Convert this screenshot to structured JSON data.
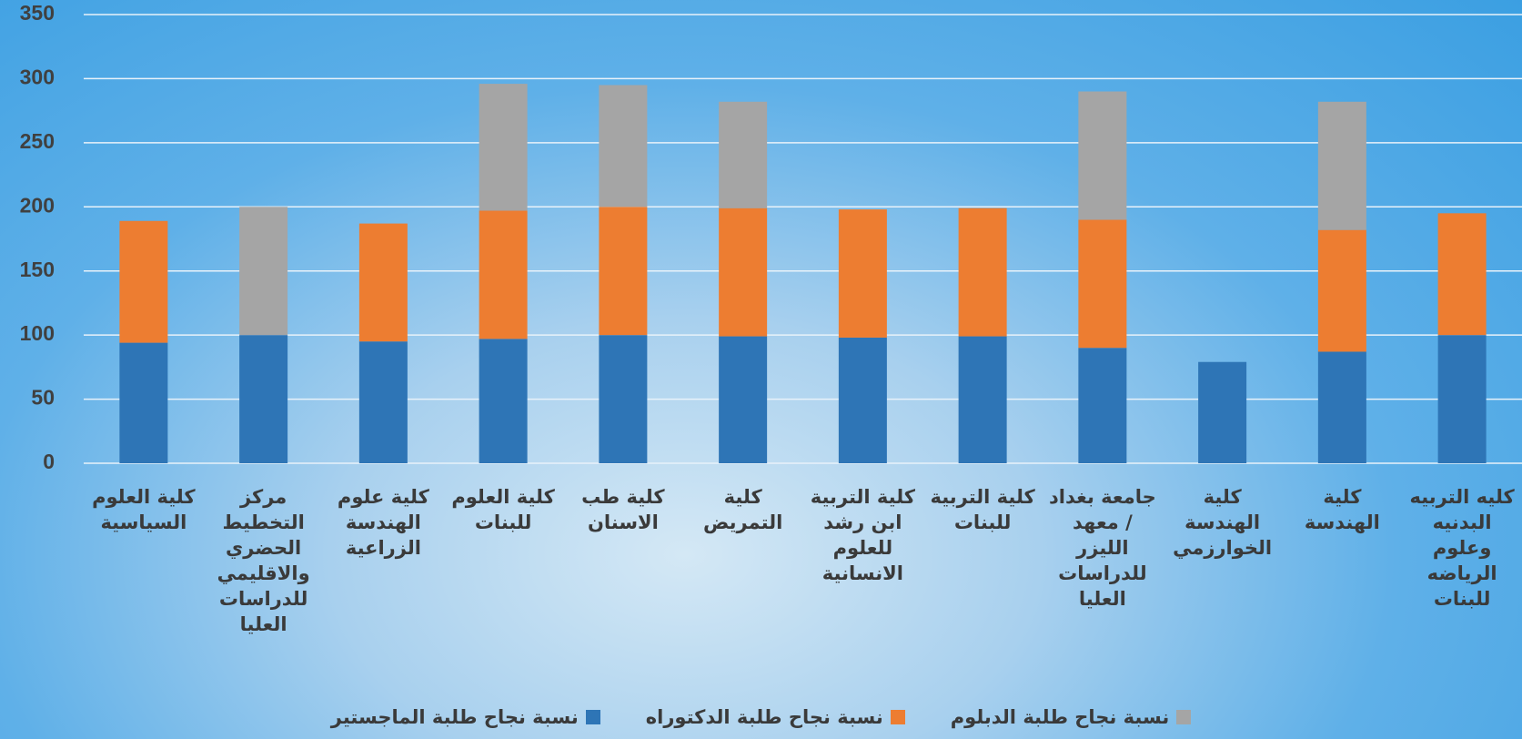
{
  "chart_data": {
    "type": "stacked_bar",
    "categories": [
      "كلية العلوم السياسية",
      "مركز التخطيط الحضري والاقليمي للدراسات العليا",
      "كلية علوم الهندسة الزراعية",
      "كلية العلوم للبنات",
      "كلية طب الاسنان",
      "كلية التمريض",
      "كلية التربية ابن رشد للعلوم الانسانية",
      "كلية التربية للبنات",
      "جامعة بغداد / معهد الليزر للدراسات العليا",
      "كلية الهندسة الخوارزمي",
      "كلية الهندسة",
      "كليه التربيه البدنيه وعلوم الرياضه للبنات"
    ],
    "series": [
      {
        "name": "نسبة نجاح طلبة الماجستير",
        "color": "#2e75b6",
        "values": [
          94,
          100,
          95,
          97,
          100,
          99,
          98,
          99,
          90,
          79,
          87,
          100
        ]
      },
      {
        "name": "نسبة نجاح طلبة الدكتوراه",
        "color": "#ed7d31",
        "values": [
          95,
          null,
          92,
          100,
          100,
          100,
          100,
          100,
          100,
          null,
          95,
          95
        ]
      },
      {
        "name": "نسبة نجاح طلبة الدبلوم",
        "color": "#a5a5a5",
        "values": [
          null,
          100,
          null,
          99,
          95,
          83,
          null,
          null,
          100,
          null,
          100,
          null
        ]
      }
    ],
    "ylim": [
      0,
      350
    ],
    "yticks": [
      0,
      50,
      100,
      150,
      200,
      250,
      300,
      350
    ],
    "grid": true
  }
}
